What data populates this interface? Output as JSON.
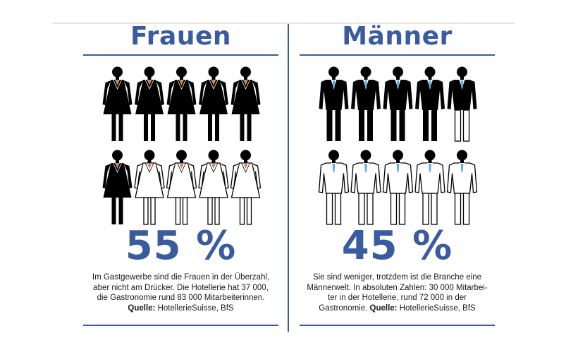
{
  "chart_data": [
    {
      "type": "pictogram",
      "title": "Frauen",
      "value_label": "55 %",
      "value": 55,
      "unit": "%",
      "icon": "woman-figure-icon",
      "icon_count": 10,
      "filled_icons": 5.5,
      "description": [
        "Im Gastgewerbe sind die Frauen in der Überzahl,",
        "aber nicht am Drücker. Die Hotellerie hat 37 000,",
        "die Gastronomie rund 83 000 Mitarbeiterinnen."
      ],
      "source_label": "Quelle:",
      "source": " HotellerieSuisse, BfS"
    },
    {
      "type": "pictogram",
      "title": "Männer",
      "value_label": "45 %",
      "value": 45,
      "unit": "%",
      "icon": "man-figure-icon",
      "icon_count": 10,
      "filled_icons": 4.5,
      "description": [
        "Sie sind weniger, trotzdem ist die Branche eine",
        "Männerwelt. In absoluten Zahlen: 30 000 Mitarbei-",
        "ter in der Hotellerie, rund 72 000 in der"
      ],
      "desc_tail": "Gastronomie. ",
      "source_label": "Quelle:",
      "source": " HotellerieSuisse, BfS"
    }
  ],
  "colors": {
    "accent": "#3b5ba0",
    "figure_fill": "#000000",
    "skin": "#c8875a",
    "tie": "#5aaee0",
    "text": "#1a1a1a"
  }
}
